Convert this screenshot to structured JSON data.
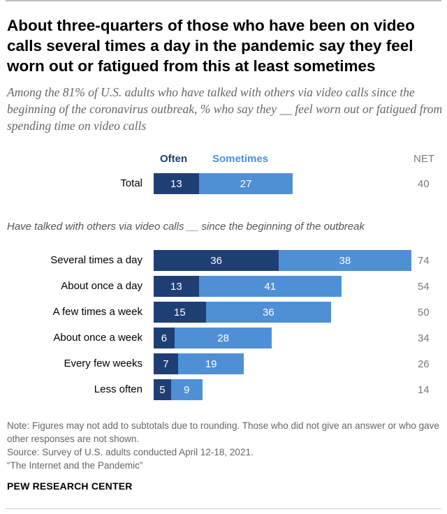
{
  "title": "About three-quarters of those who have been on video calls several times a day in the pandemic say they feel worn out or fatigued from this at least sometimes",
  "subtitle": "Among the 81% of U.S. adults who have talked with others via video calls since the beginning of the coronavirus outbreak, % who say they __ feel worn out or fatigued from spending time on video calls",
  "legend": {
    "often": "Often",
    "sometimes": "Sometimes",
    "net": "NET"
  },
  "group_label": "Have talked with others via video calls __ since the beginning of the outbreak",
  "colors": {
    "often": "#1f3e74",
    "sometimes": "#4f8fd6",
    "net_text": "#7a7a7a"
  },
  "chart_data": {
    "type": "bar",
    "orientation": "horizontal",
    "stacked": true,
    "categories": [
      "Total",
      "Several times a day",
      "About once a day",
      "A few times a week",
      "About once a week",
      "Every few weeks",
      "Less often"
    ],
    "series": [
      {
        "name": "Often",
        "values": [
          13,
          36,
          13,
          15,
          6,
          7,
          5
        ]
      },
      {
        "name": "Sometimes",
        "values": [
          27,
          38,
          41,
          36,
          28,
          19,
          9
        ]
      }
    ],
    "net": [
      40,
      74,
      54,
      50,
      34,
      26,
      14
    ],
    "title": "About three-quarters of those who have been on video calls several times a day in the pandemic say they feel worn out or fatigued from this at least sometimes",
    "xlabel": "",
    "ylabel": "",
    "xlim": [
      0,
      74
    ]
  },
  "footer": {
    "note": "Note: Figures may not add to subtotals due to rounding. Those who did not give an answer or who gave other responses are not shown.",
    "source": "Source: Survey of U.S. adults conducted April 12-18, 2021.",
    "report": "“The Internet and the Pandemic”",
    "org": "PEW RESEARCH CENTER"
  }
}
